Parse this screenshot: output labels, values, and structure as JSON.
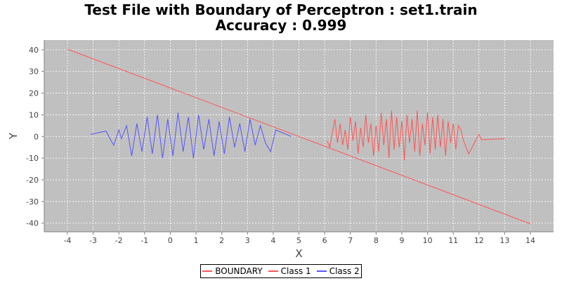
{
  "chart_data": {
    "type": "line",
    "title": "Test File with Boundary of Perceptron : set1.train",
    "subtitle": "Accuracy : 0.999",
    "xlabel": "X",
    "ylabel": "Y",
    "xlim": [
      -4.9,
      14.9
    ],
    "ylim": [
      -44,
      44.5
    ],
    "x_ticks": [
      -4,
      -3,
      -2,
      -1,
      0,
      1,
      2,
      3,
      4,
      5,
      6,
      7,
      8,
      9,
      10,
      11,
      12,
      13,
      14
    ],
    "y_ticks": [
      -40,
      -30,
      -20,
      -10,
      0,
      10,
      20,
      30,
      40
    ],
    "grid": true,
    "legend_position": "bottom",
    "plot_background": "#c0c0c0",
    "series": [
      {
        "name": "BOUNDARY",
        "color": "#ff5555",
        "x": [
          -4,
          14
        ],
        "y": [
          40.3,
          -40.3
        ]
      },
      {
        "name": "Class 1",
        "color": "#ff5555",
        "x": [
          6.1,
          6.2,
          6.3,
          6.4,
          6.5,
          6.6,
          6.7,
          6.8,
          6.9,
          7.0,
          7.1,
          7.2,
          7.3,
          7.4,
          7.5,
          7.6,
          7.7,
          7.8,
          7.9,
          8.0,
          8.1,
          8.2,
          8.3,
          8.4,
          8.5,
          8.6,
          8.7,
          8.8,
          8.9,
          9.0,
          9.1,
          9.2,
          9.3,
          9.4,
          9.5,
          9.6,
          9.7,
          9.8,
          9.9,
          10.0,
          10.1,
          10.2,
          10.3,
          10.4,
          10.5,
          10.6,
          10.7,
          10.8,
          10.9,
          11.0,
          11.1,
          11.2,
          11.3,
          11.4,
          11.6,
          12.0,
          12.1,
          13.0
        ],
        "y": [
          -2,
          -5,
          2,
          8,
          -3,
          6,
          -4,
          3,
          -6,
          9,
          -2,
          7,
          -8,
          4,
          -5,
          10,
          -3,
          6,
          -9,
          5,
          -7,
          11,
          -4,
          8,
          -10,
          12,
          -6,
          9,
          -5,
          7,
          -11,
          10,
          -3,
          8,
          -7,
          12,
          -9,
          6,
          -4,
          11,
          -8,
          9,
          -6,
          10,
          -5,
          8,
          -9,
          7,
          -3,
          6,
          -6,
          5,
          3,
          -2,
          -8,
          1,
          -1.5,
          -1
        ]
      },
      {
        "name": "Class 2",
        "color": "#5555ff",
        "x": [
          -3.1,
          -2.5,
          -2.3,
          -2.2,
          -2.0,
          -1.9,
          -1.7,
          -1.5,
          -1.3,
          -1.1,
          -0.9,
          -0.7,
          -0.5,
          -0.3,
          -0.1,
          0.1,
          0.3,
          0.5,
          0.7,
          0.9,
          1.1,
          1.3,
          1.5,
          1.7,
          1.9,
          2.1,
          2.3,
          2.5,
          2.7,
          2.9,
          3.1,
          3.3,
          3.5,
          3.7,
          3.9,
          4.1,
          4.7
        ],
        "y": [
          1,
          2.5,
          -2,
          -4,
          3,
          -1,
          5,
          -9,
          6,
          -7,
          9,
          -8,
          10,
          -10,
          8,
          -9,
          11,
          -7,
          9,
          -10,
          10,
          -6,
          8,
          -9,
          7,
          -8,
          9,
          -5,
          6,
          -7,
          8,
          -4,
          5,
          -3,
          -7,
          3,
          0
        ]
      }
    ]
  }
}
